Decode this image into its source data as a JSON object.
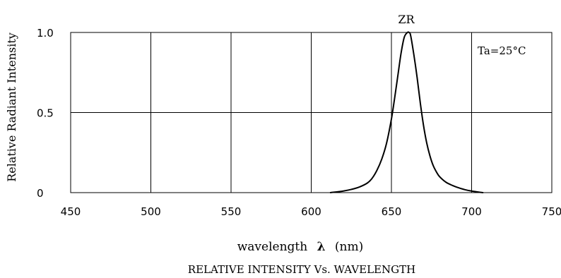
{
  "chart_data": {
    "type": "line",
    "title": "RELATIVE INTENSITY Vs. WAVELENGTH",
    "xlabel": "wavelength",
    "xlabel_symbol": "λ",
    "xlabel_unit": "(nm)",
    "ylabel": "Relative Radiant Intensity",
    "xlim": [
      450,
      750
    ],
    "ylim": [
      0,
      1.0
    ],
    "x_ticks": [
      450,
      500,
      550,
      600,
      650,
      700,
      750
    ],
    "x_tick_labels": [
      "450",
      "500",
      "550",
      "600",
      "650",
      "700",
      "750"
    ],
    "y_ticks": [
      0,
      0.5,
      1.0
    ],
    "y_tick_labels": [
      "0",
      "0.5",
      "1.0"
    ],
    "grid": true,
    "annotation": "Ta=25°C",
    "series": [
      {
        "name": "ZR",
        "color": "#000000",
        "x": [
          612,
          620,
          625,
          630,
          635,
          638,
          641,
          644,
          647,
          650,
          652,
          654,
          656,
          658,
          660,
          661,
          662,
          664,
          666,
          668,
          670,
          672,
          674,
          676,
          678,
          680,
          684,
          688,
          692,
          696,
          700,
          704,
          707
        ],
        "y": [
          0,
          0.01,
          0.02,
          0.035,
          0.06,
          0.09,
          0.14,
          0.21,
          0.31,
          0.46,
          0.59,
          0.73,
          0.87,
          0.97,
          1.0,
          1.0,
          0.98,
          0.86,
          0.72,
          0.56,
          0.42,
          0.31,
          0.23,
          0.17,
          0.13,
          0.1,
          0.065,
          0.045,
          0.03,
          0.018,
          0.01,
          0.004,
          0
        ]
      }
    ]
  }
}
